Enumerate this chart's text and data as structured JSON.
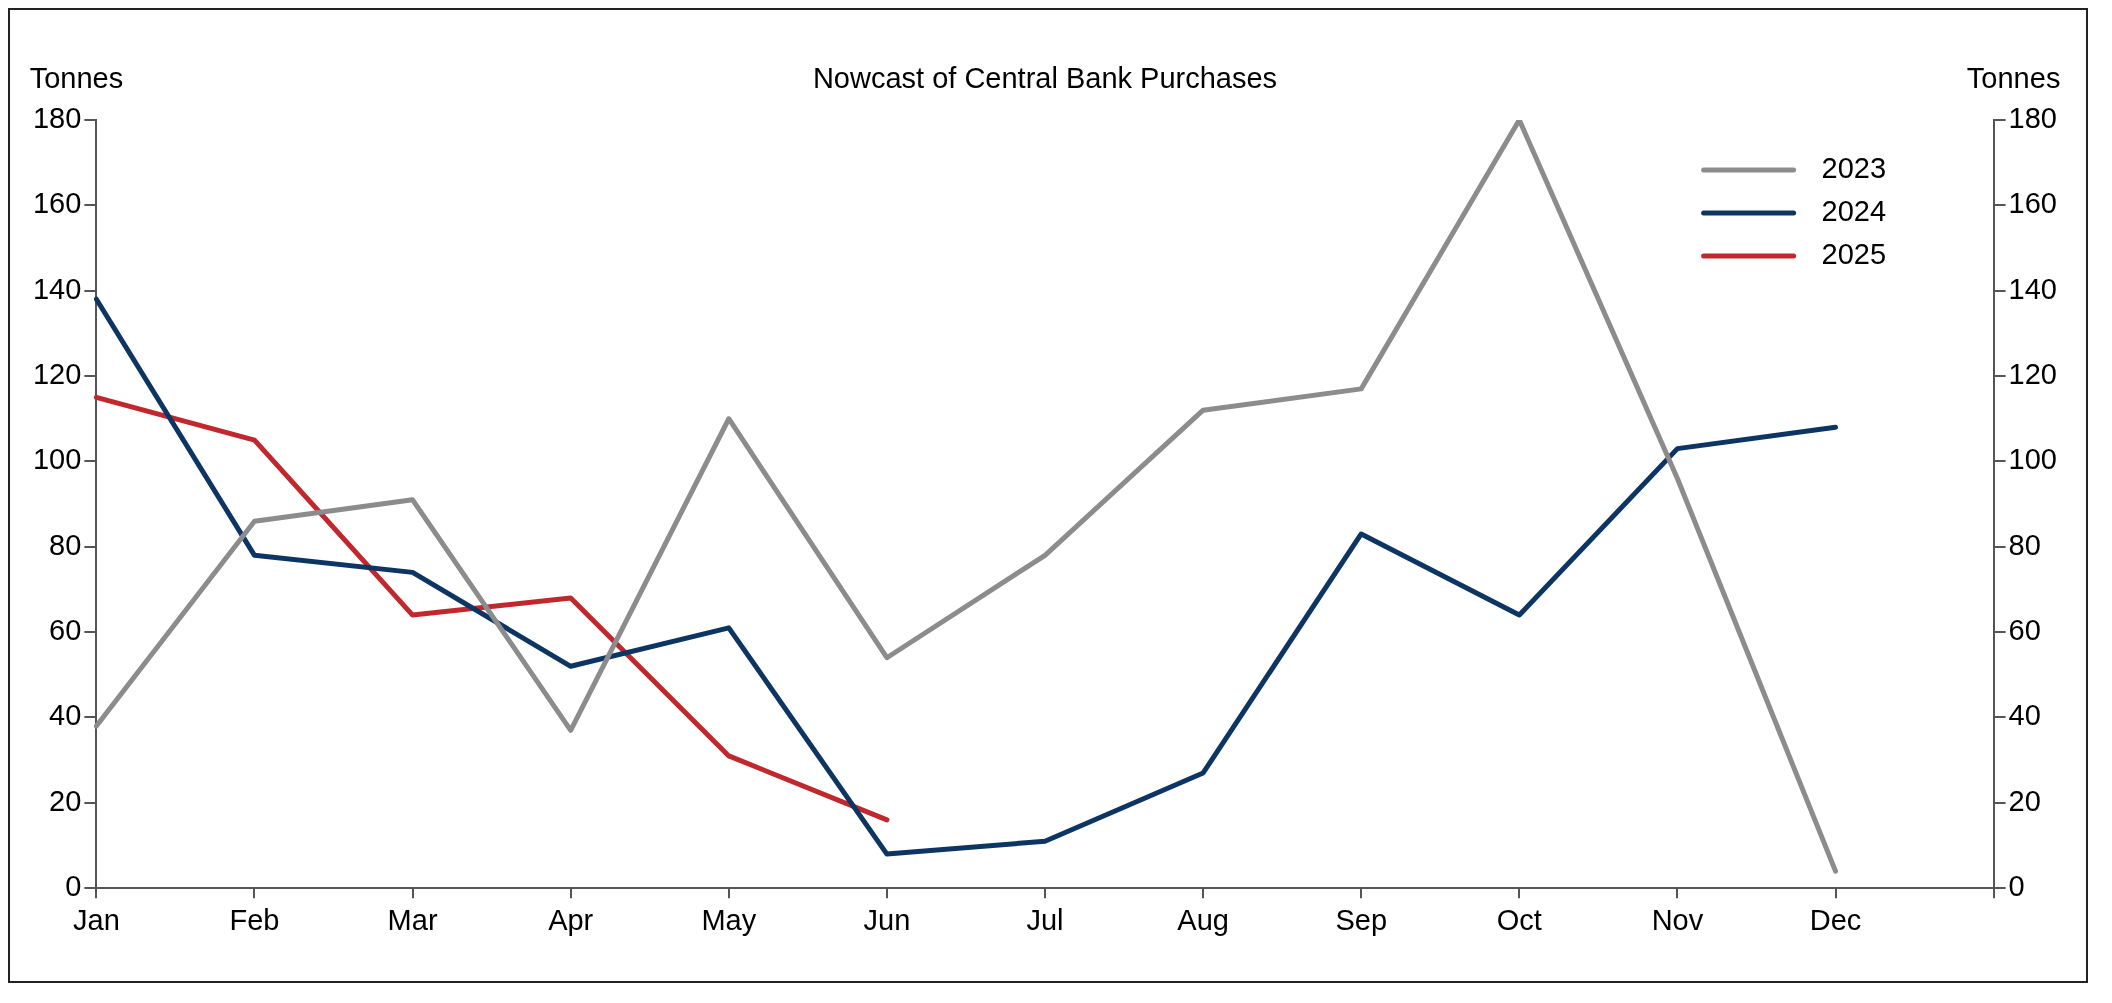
{
  "chart_data": {
    "type": "line",
    "title": "Nowcast of Central Bank Purchases",
    "ylabel": "Tonnes",
    "y2label": "Tonnes",
    "categories": [
      "Jan",
      "Feb",
      "Mar",
      "Apr",
      "May",
      "Jun",
      "Jul",
      "Aug",
      "Sep",
      "Oct",
      "Nov",
      "Dec",
      null
    ],
    "series": [
      {
        "name": "2023",
        "color": "#8c8c8c",
        "values": [
          38,
          86,
          91,
          37,
          110,
          54,
          78,
          112,
          117,
          180,
          96,
          4,
          null
        ]
      },
      {
        "name": "2024",
        "color": "#0c3563",
        "values": [
          138,
          78,
          74,
          52,
          61,
          8,
          11,
          27,
          83,
          64,
          103,
          108,
          null
        ]
      },
      {
        "name": "2025",
        "color": "#c0282d",
        "values": [
          115,
          105,
          64,
          68,
          31,
          16,
          null,
          null,
          null,
          null,
          null,
          null,
          null
        ]
      }
    ],
    "ylim": [
      0,
      180
    ],
    "yticks": [
      0,
      20,
      40,
      60,
      80,
      100,
      120,
      140,
      160,
      180
    ],
    "y2lim": [
      0,
      180
    ],
    "y2ticks": [
      0,
      20,
      40,
      60,
      80,
      100,
      120,
      140,
      160,
      180
    ],
    "grid": false,
    "legend": "top right",
    "marker": "none",
    "line_style": "solid"
  }
}
